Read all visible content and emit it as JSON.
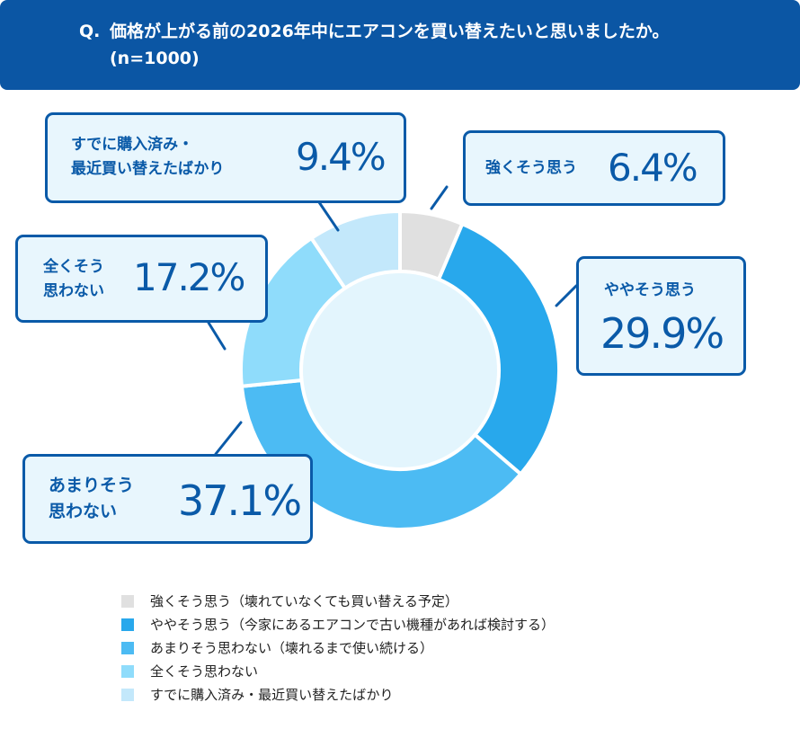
{
  "header": {
    "q": "Q.",
    "title": "価格が上がる前の2026年中にエアコンを買い替えたいと思いましたか。(n=1000)"
  },
  "chart_data": {
    "type": "pie",
    "subtype": "donut",
    "categories": [
      "強くそう思う",
      "ややそう思う",
      "あまりそう思わない",
      "全くそう思わない",
      "すでに購入済み・最近買い替えたばかり"
    ],
    "values": [
      6.4,
      29.9,
      37.1,
      17.2,
      9.4
    ],
    "unit": "%",
    "colors": [
      "#e0e0e0",
      "#28a8ec",
      "#4cbbf3",
      "#8fdcfb",
      "#c3e8fb"
    ],
    "data_labels": [
      {
        "label": "強くそう思う",
        "value": "6.4%"
      },
      {
        "label": "ややそう思う",
        "value": "29.9%"
      },
      {
        "label": "あまりそう\n思わない",
        "value": "37.1%"
      },
      {
        "label": "全くそう\n思わない",
        "value": "17.2%"
      },
      {
        "label": "すでに購入済み・\n最近買い替えたばかり",
        "value": "9.4%"
      }
    ],
    "legend": [
      "強くそう思う（壊れていなくても買い替える予定）",
      "ややそう思う（今家にあるエアコンで古い機種があれば検討する）",
      "あまりそう思わない（壊れるまで使い続ける）",
      "全くそう思わない",
      "すでに購入済み・最近買い替えたばかり"
    ],
    "legend_position": "bottom"
  }
}
